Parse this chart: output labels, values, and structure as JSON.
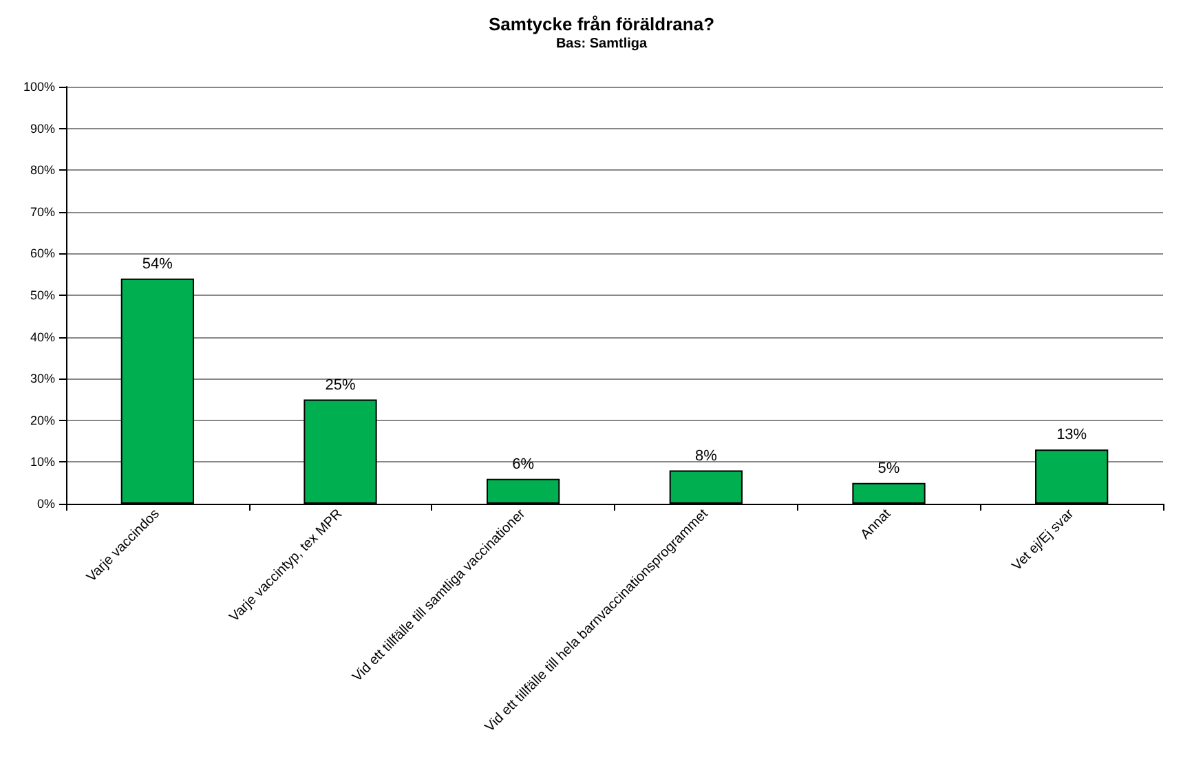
{
  "chart_data": {
    "type": "bar",
    "title": "Samtycke från föräldrana?",
    "subtitle": "Bas: Samtliga",
    "categories": [
      "Varje vaccindos",
      "Varje vaccintyp, tex MPR",
      "Vid ett tillfälle till samtliga vaccinationer",
      "Vid ett tillfälle till hela barnvaccinationsprogrammet",
      "Annat",
      "Vet ej/Ej svar"
    ],
    "values": [
      54,
      25,
      6,
      8,
      5,
      13
    ],
    "value_labels": [
      "54%",
      "25%",
      "6%",
      "8%",
      "5%",
      "13%"
    ],
    "color": "#00b050",
    "ylim": [
      0,
      100
    ],
    "yticks": [
      {
        "value": 0,
        "label": "0%"
      },
      {
        "value": 10,
        "label": "10%"
      },
      {
        "value": 20,
        "label": "20%"
      },
      {
        "value": 30,
        "label": "30%"
      },
      {
        "value": 40,
        "label": "40%"
      },
      {
        "value": 50,
        "label": "50%"
      },
      {
        "value": 60,
        "label": "60%"
      },
      {
        "value": 70,
        "label": "70%"
      },
      {
        "value": 80,
        "label": "80%"
      },
      {
        "value": 90,
        "label": "90%"
      },
      {
        "value": 100,
        "label": "100%"
      }
    ],
    "grid": "y",
    "legend": false
  }
}
